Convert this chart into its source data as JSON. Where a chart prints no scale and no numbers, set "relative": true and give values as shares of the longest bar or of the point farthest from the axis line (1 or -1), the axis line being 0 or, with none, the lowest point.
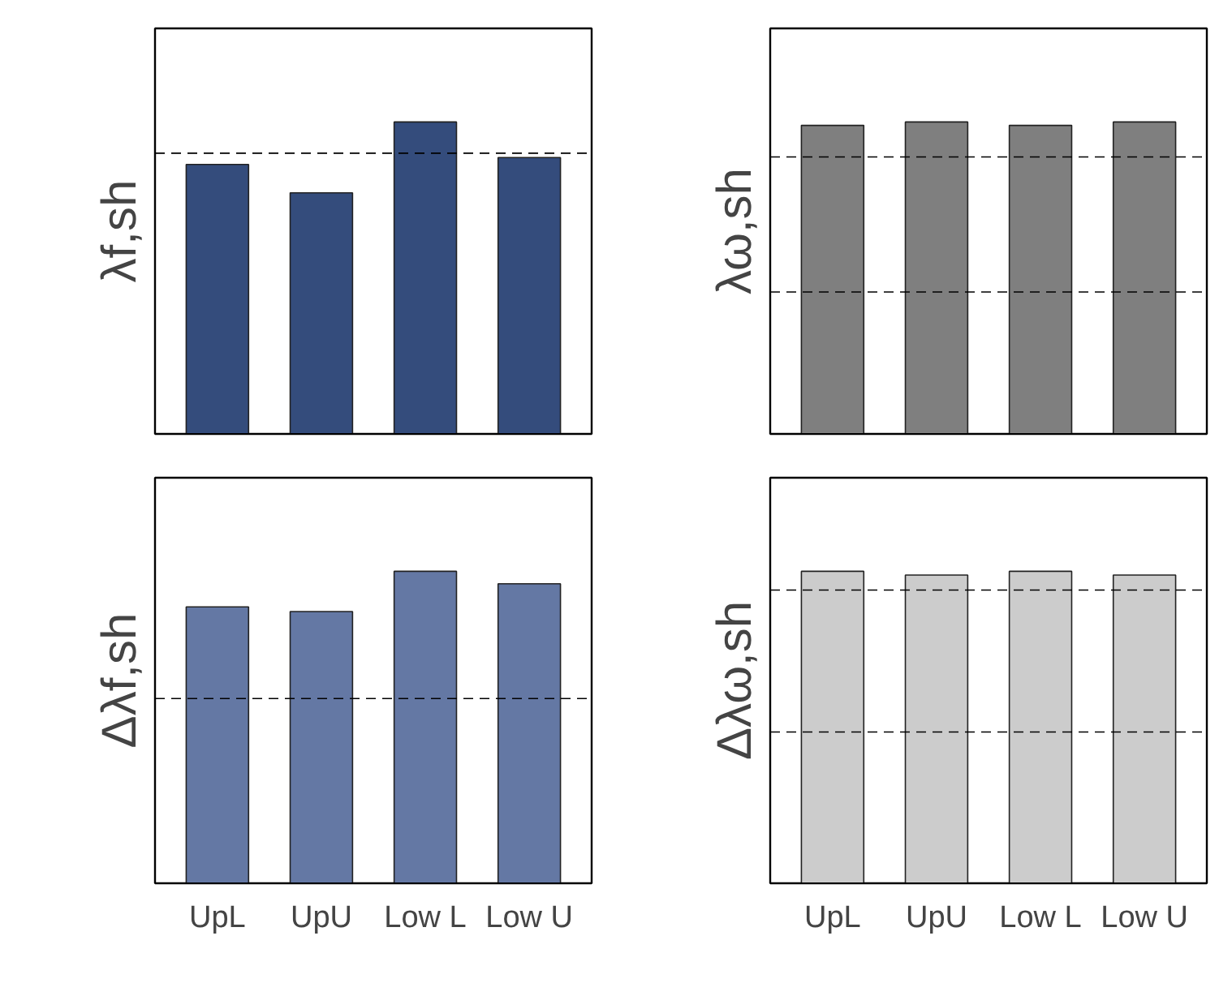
{
  "chart_data": [
    {
      "type": "bar",
      "ylabel": "λf,sh",
      "relative": true,
      "categories": [
        null,
        null,
        null,
        null
      ],
      "tick_labels": false,
      "series": [
        {
          "color": "#344c7c",
          "values": [
            0.864,
            0.773,
            1,
            0.886
          ]
        }
      ],
      "ref_lines": [
        {
          "axis": "y",
          "value": 0.9,
          "line_style": "dashed"
        }
      ]
    },
    {
      "type": "bar",
      "ylabel": "λω,sh",
      "relative": true,
      "categories": [
        null,
        null,
        null,
        null
      ],
      "tick_labels": false,
      "series": [
        {
          "color": "#7f7f7f",
          "values": [
            0.989,
            1,
            0.989,
            1
          ]
        }
      ],
      "ref_lines": [
        {
          "axis": "y",
          "value": 0.888,
          "line_style": "dashed"
        },
        {
          "axis": "y",
          "value": 0.455,
          "line_style": "dashed"
        }
      ]
    },
    {
      "type": "bar",
      "ylabel": "Δλf,sh",
      "relative": true,
      "categories": [
        "UpL",
        "UpU",
        "Low L",
        "Low U"
      ],
      "tick_labels": "x",
      "series": [
        {
          "color": "#6478a4",
          "values": [
            0.886,
            0.871,
            1,
            0.96
          ]
        }
      ],
      "ref_lines": [
        {
          "axis": "y",
          "value": 0.592,
          "line_style": "dashed"
        }
      ]
    },
    {
      "type": "bar",
      "ylabel": "Δλω,sh",
      "relative": true,
      "categories": [
        "UpL",
        "UpU",
        "Low L",
        "Low U"
      ],
      "tick_labels": "x",
      "series": [
        {
          "color": "#cccccc",
          "values": [
            1,
            0.988,
            1,
            0.988
          ]
        }
      ],
      "ref_lines": [
        {
          "axis": "y",
          "value": 0.94,
          "line_style": "dashed"
        },
        {
          "axis": "y",
          "value": 0.485,
          "line_style": "dashed"
        }
      ]
    }
  ]
}
